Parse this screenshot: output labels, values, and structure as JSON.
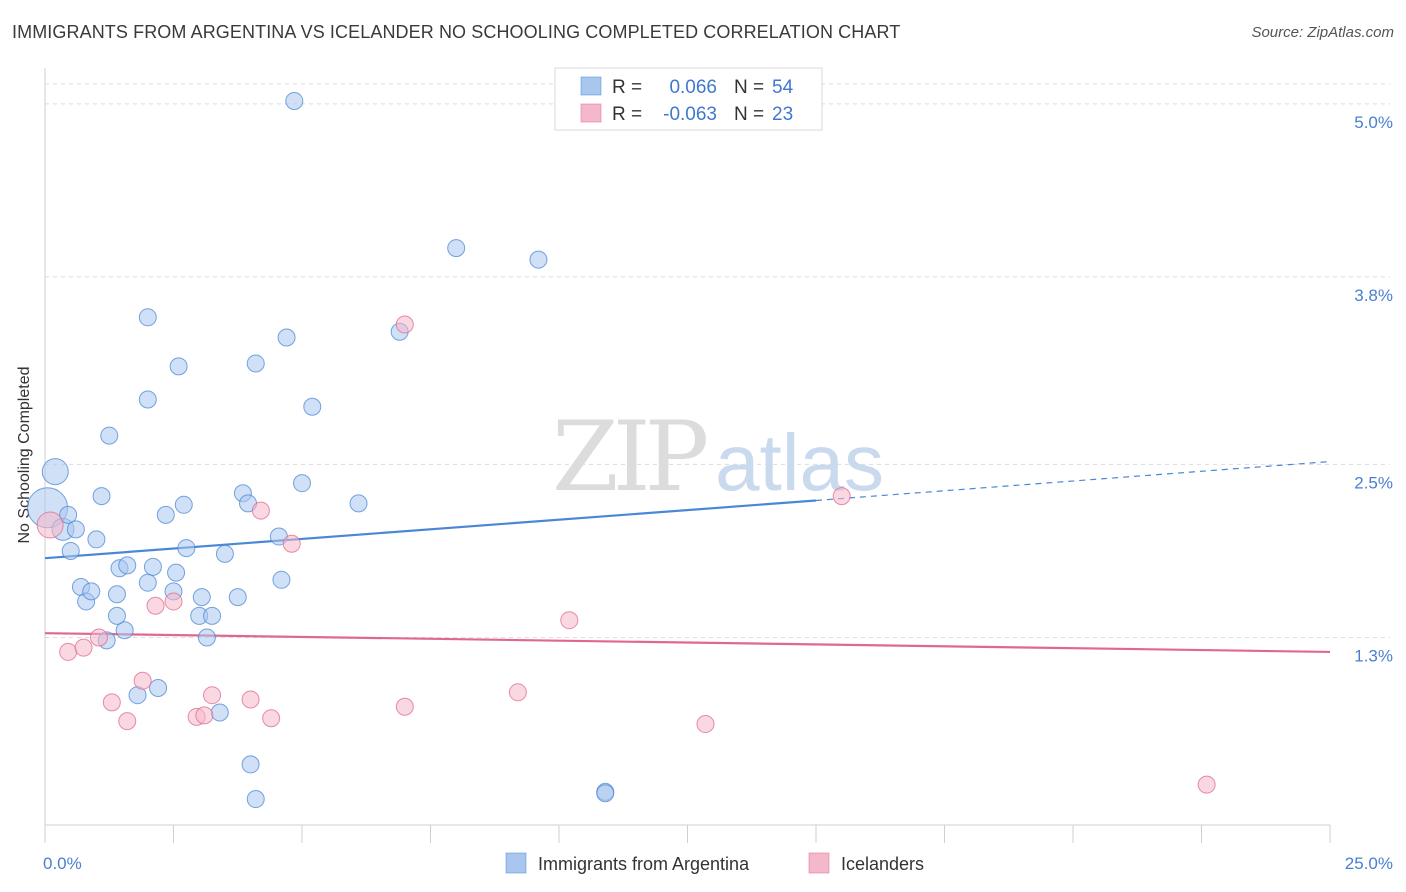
{
  "title": "IMMIGRANTS FROM ARGENTINA VS ICELANDER NO SCHOOLING COMPLETED CORRELATION CHART",
  "source": "Source: ZipAtlas.com",
  "watermark": {
    "part1": "ZIP",
    "part2": "atlas"
  },
  "legend": {
    "rows": [
      {
        "r_label": "R =",
        "r_value": "0.066",
        "n_label": "N =",
        "n_value": "54",
        "color": "#a9c6ee"
      },
      {
        "r_label": "R =",
        "r_value": "-0.063",
        "n_label": "N =",
        "n_value": "23",
        "color": "#f5b8cb"
      }
    ]
  },
  "bottom_legend": [
    {
      "label": "Immigrants from Argentina",
      "color": "#a9c6ee"
    },
    {
      "label": "Icelanders",
      "color": "#f5b8cb"
    }
  ],
  "chart_data": {
    "type": "scatter",
    "title": "IMMIGRANTS FROM ARGENTINA VS ICELANDER NO SCHOOLING COMPLETED CORRELATION CHART",
    "xlabel": "",
    "ylabel": "No Schooling Completed",
    "xlim": [
      0,
      25
    ],
    "ylim": [
      0,
      5.2
    ],
    "x_tick_labels": [
      "0.0%",
      "25.0%"
    ],
    "y_ticks": [
      {
        "value": 1.3,
        "label": "1.3%"
      },
      {
        "value": 2.5,
        "label": "2.5%"
      },
      {
        "value": 3.8,
        "label": "3.8%"
      },
      {
        "value": 5.0,
        "label": "5.0%"
      }
    ],
    "grid": true,
    "legend_position": "top-center",
    "series": [
      {
        "name": "Immigrants from Argentina",
        "color": "#4a87d6",
        "fill": "#a9c6ee",
        "trend": {
          "x0": 0,
          "y0": 1.85,
          "x1": 15,
          "y1": 2.25,
          "dash_to_x": 25,
          "dash_to_y": 2.52
        },
        "points": [
          [
            0.2,
            2.45,
            "big"
          ],
          [
            0.05,
            2.2,
            "huge"
          ],
          [
            0.35,
            2.05,
            "mid"
          ],
          [
            0.45,
            2.15
          ],
          [
            0.5,
            1.9
          ],
          [
            0.6,
            2.05
          ],
          [
            1.0,
            1.98
          ],
          [
            1.1,
            2.28
          ],
          [
            1.25,
            2.7
          ],
          [
            0.7,
            1.65
          ],
          [
            0.8,
            1.55
          ],
          [
            0.9,
            1.62
          ],
          [
            1.4,
            1.6
          ],
          [
            1.45,
            1.78
          ],
          [
            1.6,
            1.8
          ],
          [
            1.55,
            1.35
          ],
          [
            2.0,
            1.68
          ],
          [
            2.1,
            1.79
          ],
          [
            2.0,
            2.95
          ],
          [
            2.0,
            3.52
          ],
          [
            2.35,
            2.15
          ],
          [
            2.5,
            1.62
          ],
          [
            2.55,
            1.75
          ],
          [
            2.6,
            3.18
          ],
          [
            2.7,
            2.22
          ],
          [
            2.75,
            1.92
          ],
          [
            1.2,
            1.28
          ],
          [
            1.4,
            1.45
          ],
          [
            1.8,
            0.9
          ],
          [
            2.2,
            0.95
          ],
          [
            3.0,
            1.45
          ],
          [
            3.05,
            1.58
          ],
          [
            3.15,
            1.3
          ],
          [
            3.25,
            1.45
          ],
          [
            3.4,
            0.78
          ],
          [
            3.5,
            1.88
          ],
          [
            3.75,
            1.58
          ],
          [
            3.85,
            2.3
          ],
          [
            3.95,
            2.23
          ],
          [
            4.0,
            0.42
          ],
          [
            4.1,
            0.18
          ],
          [
            4.1,
            3.2
          ],
          [
            4.55,
            2.0
          ],
          [
            4.6,
            1.7
          ],
          [
            4.7,
            3.38
          ],
          [
            4.85,
            5.02
          ],
          [
            5.0,
            2.37
          ],
          [
            5.2,
            2.9
          ],
          [
            6.1,
            2.23
          ],
          [
            6.9,
            3.42
          ],
          [
            8.0,
            4.0
          ],
          [
            9.6,
            3.92
          ],
          [
            10.9,
            0.23
          ],
          [
            10.9,
            0.22
          ]
        ]
      },
      {
        "name": "Icelanders",
        "color": "#e0688f",
        "fill": "#f5b8cb",
        "trend": {
          "x0": 0,
          "y0": 1.33,
          "x1": 25,
          "y1": 1.2
        },
        "points": [
          [
            0.1,
            2.08,
            "big"
          ],
          [
            0.45,
            1.2
          ],
          [
            0.75,
            1.23
          ],
          [
            1.05,
            1.3
          ],
          [
            1.3,
            0.85
          ],
          [
            1.6,
            0.72
          ],
          [
            1.9,
            1.0
          ],
          [
            2.15,
            1.52
          ],
          [
            2.5,
            1.55
          ],
          [
            2.95,
            0.75
          ],
          [
            3.1,
            0.76
          ],
          [
            3.25,
            0.9
          ],
          [
            4.0,
            0.87
          ],
          [
            4.2,
            2.18
          ],
          [
            4.4,
            0.74
          ],
          [
            4.8,
            1.95
          ],
          [
            7.0,
            3.47
          ],
          [
            7.0,
            0.82
          ],
          [
            9.2,
            0.92
          ],
          [
            10.2,
            1.42
          ],
          [
            12.85,
            0.7
          ],
          [
            15.5,
            2.28
          ],
          [
            22.6,
            0.28
          ]
        ]
      }
    ]
  }
}
